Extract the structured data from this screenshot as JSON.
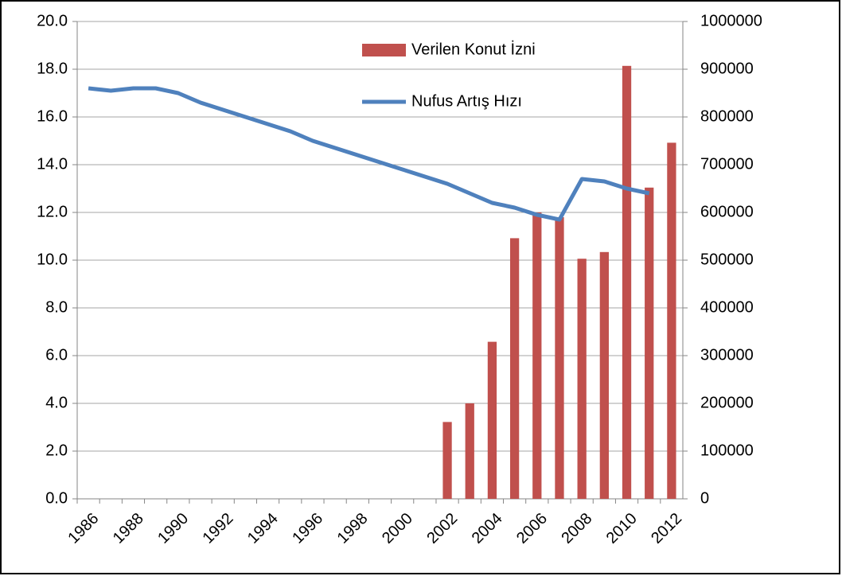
{
  "chart_data": {
    "type": "combo",
    "categories": [
      "1986",
      null,
      "1988",
      null,
      "1990",
      null,
      "1992",
      null,
      "1994",
      null,
      "1996",
      null,
      "1998",
      null,
      "2000",
      null,
      "2002",
      null,
      "2004",
      null,
      "2006",
      null,
      "2008",
      null,
      "2010",
      null,
      "2012"
    ],
    "series": [
      {
        "name": "Verilen Konut İzni",
        "type": "bar",
        "axis": "y2",
        "color": "#c0504d",
        "values": [
          null,
          null,
          null,
          null,
          null,
          null,
          null,
          null,
          null,
          null,
          null,
          null,
          null,
          null,
          null,
          null,
          161000,
          200000,
          329000,
          546000,
          600000,
          590000,
          503000,
          517000,
          907000,
          652000,
          746000
        ]
      },
      {
        "name": "Nufus Artış Hızı",
        "type": "line",
        "axis": "y",
        "color": "#4f81bd",
        "values": [
          17.2,
          17.1,
          17.2,
          17.2,
          17.0,
          16.6,
          16.3,
          16.0,
          15.7,
          15.4,
          15.0,
          14.7,
          14.4,
          14.1,
          13.8,
          13.5,
          13.2,
          12.8,
          12.4,
          12.2,
          11.9,
          11.7,
          13.4,
          13.3,
          13.0,
          12.8,
          null
        ]
      }
    ],
    "ylim": [
      0,
      20
    ],
    "yticks": [
      {
        "value": 0,
        "label": "0.0"
      },
      {
        "value": 2,
        "label": "2.0"
      },
      {
        "value": 4,
        "label": "4.0"
      },
      {
        "value": 6,
        "label": "6.0"
      },
      {
        "value": 8,
        "label": "8.0"
      },
      {
        "value": 10,
        "label": "10.0"
      },
      {
        "value": 12,
        "label": "12.0"
      },
      {
        "value": 14,
        "label": "14.0"
      },
      {
        "value": 16,
        "label": "16.0"
      },
      {
        "value": 18,
        "label": "18.0"
      },
      {
        "value": 20,
        "label": "20.0"
      }
    ],
    "y2lim": [
      0,
      1000000
    ],
    "y2ticks": [
      0,
      100000,
      200000,
      300000,
      400000,
      500000,
      600000,
      700000,
      800000,
      900000,
      1000000
    ],
    "grid": true
  }
}
